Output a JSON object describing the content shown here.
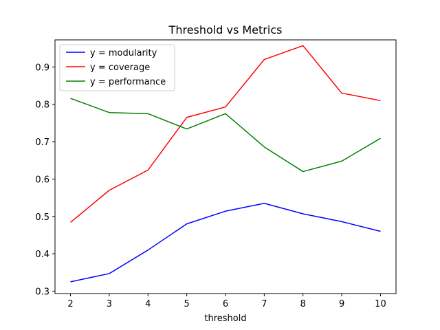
{
  "chart_data": {
    "type": "line",
    "title": "Threshold vs Metrics",
    "xlabel": "threshold",
    "ylabel": "",
    "x": [
      2,
      3,
      4,
      5,
      6,
      7,
      8,
      9,
      10
    ],
    "xticks": [
      "2",
      "3",
      "4",
      "5",
      "6",
      "7",
      "8",
      "9",
      "10"
    ],
    "yticks": [
      "0.3",
      "0.4",
      "0.5",
      "0.6",
      "0.7",
      "0.8",
      "0.9"
    ],
    "xlim": [
      1.6,
      10.4
    ],
    "ylim": [
      0.2935,
      0.9725
    ],
    "grid": false,
    "legend_position": "top-left",
    "series": [
      {
        "name": "y = modularity",
        "color": "#0000ff",
        "values": [
          0.325,
          0.347,
          0.41,
          0.48,
          0.514,
          0.535,
          0.507,
          0.486,
          0.46
        ]
      },
      {
        "name": "y = coverage",
        "color": "#ff0000",
        "values": [
          0.484,
          0.57,
          0.624,
          0.765,
          0.793,
          0.92,
          0.957,
          0.83,
          0.81
        ]
      },
      {
        "name": "y = performance",
        "color": "#008000",
        "values": [
          0.816,
          0.778,
          0.775,
          0.734,
          0.775,
          0.686,
          0.62,
          0.648,
          0.709
        ]
      }
    ]
  }
}
